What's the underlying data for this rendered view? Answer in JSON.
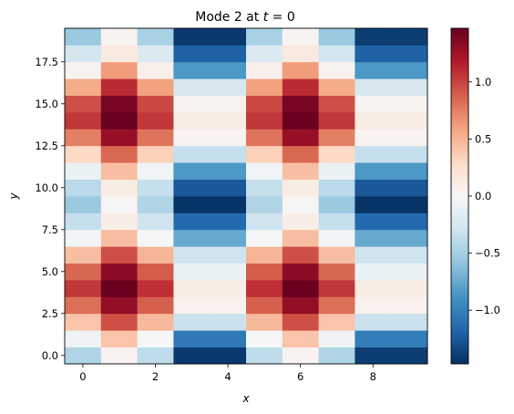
{
  "chart_data": {
    "type": "heatmap",
    "title": "Mode 2 at t = 0",
    "title_prefix": "Mode 2 at ",
    "title_var": "t",
    "title_suffix": " = 0",
    "xlabel": "x",
    "ylabel": "y",
    "x": [
      0,
      1,
      2,
      3,
      4,
      5,
      6,
      7,
      8,
      9
    ],
    "y": [
      0,
      1,
      2,
      3,
      4,
      5,
      6,
      7,
      8,
      9,
      10,
      11,
      12,
      13,
      14,
      15,
      16,
      17,
      18,
      19
    ],
    "xlim": [
      -0.5,
      9.5
    ],
    "ylim": [
      -0.5,
      19.5
    ],
    "x_ticks": [
      0,
      2,
      4,
      6,
      8
    ],
    "x_tick_labels": [
      "0",
      "2",
      "4",
      "6",
      "8"
    ],
    "y_ticks": [
      0,
      2.5,
      5,
      7.5,
      10,
      12.5,
      15,
      17.5
    ],
    "y_tick_labels": [
      "0.0",
      "2.5",
      "5.0",
      "7.5",
      "10.0",
      "12.5",
      "15.0",
      "17.5"
    ],
    "colormap": "RdBu_r",
    "vmin": -1.47,
    "vmax": 1.47,
    "colorbar_ticks": [
      -1,
      -0.5,
      0,
      0.5,
      1
    ],
    "colorbar_tick_labels": [
      "−1.0",
      "−0.5",
      "0.0",
      "0.5",
      "1.0"
    ],
    "grid": false,
    "values": [
      [
        -0.45,
        0.04,
        -0.38,
        -1.42,
        -1.42,
        -0.38,
        0.04,
        -0.45,
        -1.4,
        -1.4
      ],
      [
        -0.07,
        0.42,
        -0.02,
        -1.05,
        -1.05,
        -0.02,
        0.42,
        -0.07,
        -1.02,
        -1.02
      ],
      [
        0.42,
        0.95,
        0.48,
        -0.32,
        -0.32,
        0.48,
        0.95,
        0.42,
        -0.32,
        -0.32
      ],
      [
        0.82,
        1.3,
        0.88,
        0.06,
        0.06,
        0.88,
        1.3,
        0.82,
        0.06,
        0.06
      ],
      [
        1.05,
        1.46,
        1.08,
        0.12,
        0.12,
        1.08,
        1.46,
        1.05,
        0.12,
        0.12
      ],
      [
        0.85,
        1.32,
        0.9,
        -0.1,
        -0.1,
        0.9,
        1.32,
        0.85,
        -0.1,
        -0.1
      ],
      [
        0.45,
        0.95,
        0.5,
        -0.3,
        -0.3,
        0.5,
        0.95,
        0.45,
        -0.3,
        -0.3
      ],
      [
        -0.05,
        0.45,
        -0.02,
        -0.75,
        -0.75,
        -0.02,
        0.45,
        -0.05,
        -0.75,
        -0.75
      ],
      [
        -0.35,
        0.1,
        -0.3,
        -1.15,
        -1.15,
        -0.3,
        0.1,
        -0.35,
        -1.15,
        -1.15
      ],
      [
        -0.55,
        0.02,
        -0.45,
        -1.45,
        -1.45,
        -0.45,
        0.02,
        -0.55,
        -1.45,
        -1.45
      ],
      [
        -0.4,
        0.12,
        -0.35,
        -1.25,
        -1.25,
        -0.35,
        0.12,
        -0.4,
        -1.25,
        -1.25
      ],
      [
        -0.1,
        0.45,
        -0.05,
        -0.85,
        -0.85,
        -0.05,
        0.45,
        -0.1,
        -0.85,
        -0.85
      ],
      [
        0.3,
        0.85,
        0.35,
        -0.35,
        -0.35,
        0.35,
        0.85,
        0.3,
        -0.35,
        -0.35
      ],
      [
        0.75,
        1.28,
        0.8,
        0.04,
        0.04,
        0.8,
        1.28,
        0.75,
        0.04,
        0.04
      ],
      [
        1.05,
        1.46,
        1.05,
        0.12,
        0.12,
        1.05,
        1.46,
        1.05,
        0.12,
        0.12
      ],
      [
        0.95,
        1.4,
        0.98,
        0.05,
        0.05,
        0.98,
        1.4,
        0.95,
        0.05,
        0.05
      ],
      [
        0.55,
        1.1,
        0.6,
        -0.25,
        -0.25,
        0.6,
        1.1,
        0.55,
        -0.25,
        -0.25
      ],
      [
        0.05,
        0.62,
        0.08,
        -0.85,
        -0.85,
        0.08,
        0.62,
        0.05,
        -0.85,
        -0.85
      ],
      [
        -0.28,
        0.15,
        -0.22,
        -1.2,
        -1.2,
        -0.22,
        0.15,
        -0.28,
        -1.2,
        -1.2
      ],
      [
        -0.55,
        0.04,
        -0.48,
        -1.42,
        -1.42,
        -0.48,
        0.04,
        -0.55,
        -1.4,
        -1.4
      ]
    ]
  }
}
